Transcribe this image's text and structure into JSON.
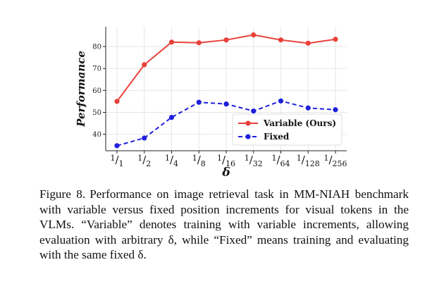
{
  "chart_data": {
    "type": "line",
    "categories": [
      "1/1",
      "1/2",
      "1/4",
      "1/8",
      "1/16",
      "1/32",
      "1/64",
      "1/128",
      "1/256"
    ],
    "category_parts": [
      {
        "num": "1",
        "den": "1"
      },
      {
        "num": "1",
        "den": "2"
      },
      {
        "num": "1",
        "den": "4"
      },
      {
        "num": "1",
        "den": "8"
      },
      {
        "num": "1",
        "den": "16"
      },
      {
        "num": "1",
        "den": "32"
      },
      {
        "num": "1",
        "den": "64"
      },
      {
        "num": "1",
        "den": "128"
      },
      {
        "num": "1",
        "den": "256"
      }
    ],
    "series": [
      {
        "name": "Variable (Ours)",
        "values": [
          55.0,
          71.7,
          82.0,
          81.7,
          83.0,
          85.3,
          83.0,
          81.5,
          83.3
        ],
        "color": "#e8413a",
        "line_style": "solid",
        "marker": "circle"
      },
      {
        "name": "Fixed",
        "values": [
          34.8,
          38.3,
          47.7,
          54.6,
          53.8,
          50.6,
          55.2,
          52.0,
          51.2
        ],
        "color": "#1f1fdd",
        "line_style": "dashed",
        "marker": "circle"
      }
    ],
    "xlabel": "δ",
    "ylabel": "Performance",
    "ylim": [
      32.5,
      89
    ],
    "yticks": [
      40,
      50,
      60,
      70,
      80
    ],
    "grid": true,
    "legend_position": "bottom-right"
  },
  "caption": {
    "label": "Figure 8.",
    "text": "Performance on image retrieval task in MM-NIAH benchmark with variable versus fixed position increments for visual tokens in the VLMs. “Variable” denotes training with variable increments, allowing evaluation with arbitrary δ, while “Fixed” means training and evaluating with the same fixed δ."
  }
}
